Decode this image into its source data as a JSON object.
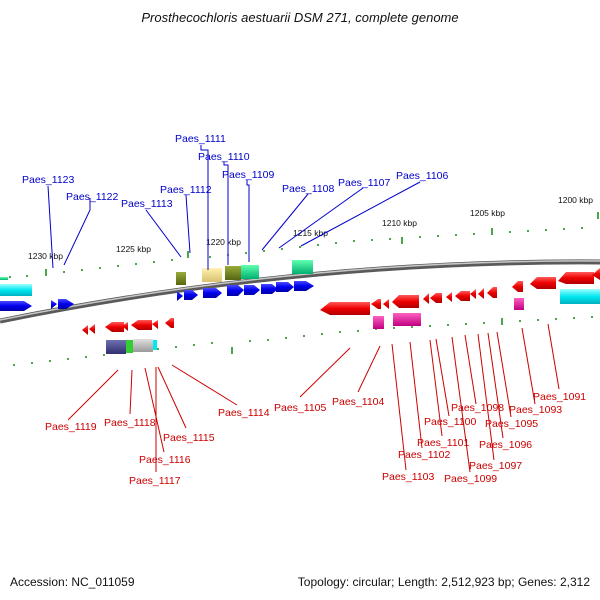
{
  "title": "Prosthecochloris aestuarii DSM 271, complete genome",
  "footer": {
    "accession": "Accession: NC_011059",
    "summary": "Topology: circular; Length: 2,512,923 bp; Genes: 2,312"
  },
  "colors": {
    "forward_label": "#0000cc",
    "reverse_label": "#cc0000",
    "backbone": "#888888",
    "tick": "#118811"
  },
  "scale_labels": [
    "1230 kbp",
    "1225 kbp",
    "1220 kbp",
    "1215 kbp",
    "1210 kbp",
    "1205 kbp",
    "1200 kbp"
  ],
  "forward_labels": [
    "Paes_1111",
    "Paes_1110",
    "Paes_1109",
    "Paes_1108",
    "Paes_1107",
    "Paes_1106",
    "Paes_1123",
    "Paes_1122",
    "Paes_1112",
    "Paes_1113"
  ],
  "reverse_labels": [
    "Paes_1119",
    "Paes_1118",
    "Paes_1116",
    "Paes_1117",
    "Paes_1115",
    "Paes_1114",
    "Paes_1105",
    "Paes_1104",
    "Paes_1103",
    "Paes_1102",
    "Paes_1101",
    "Paes_1100",
    "Paes_1099",
    "Paes_1098",
    "Paes_1097",
    "Paes_1096",
    "Paes_1095",
    "Paes_1093",
    "Paes_1091"
  ]
}
